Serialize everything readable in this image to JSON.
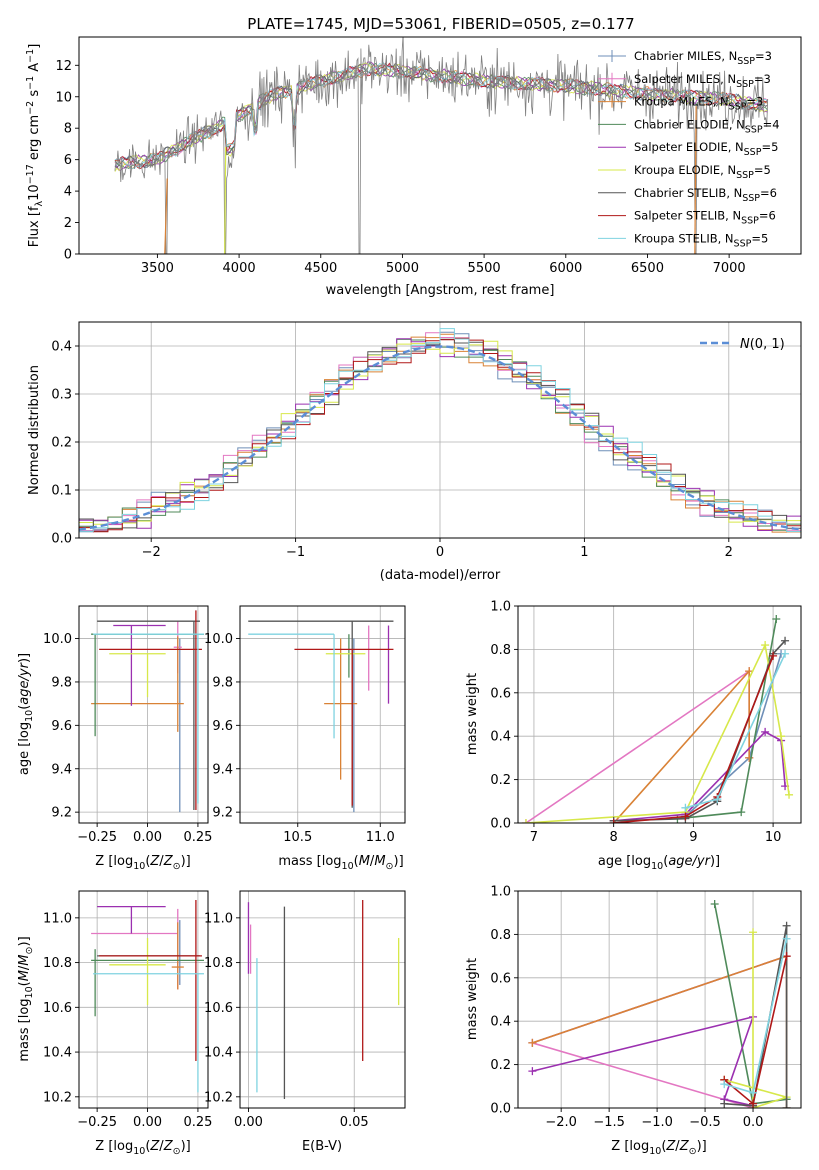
{
  "figure": {
    "title": "PLATE=1745, MJD=53061, FIBERID=0505, z=0.177"
  },
  "legend_entries": [
    {
      "name": "Chabrier MILES, N_SSP=3",
      "prefix": "Chabrier MILES, N",
      "sub": "SSP",
      "suffix": "=3",
      "color": "#6f8fb8"
    },
    {
      "name": "Salpeter MILES, N_SSP=3",
      "prefix": "Salpeter MILES, N",
      "sub": "SSP",
      "suffix": "=3",
      "color": "#e377c2"
    },
    {
      "name": "Kroupa MILES, N_SSP=3",
      "prefix": "Kroupa MILES, N",
      "sub": "SSP",
      "suffix": "=3",
      "color": "#d98236"
    },
    {
      "name": "Chabrier ELODIE, N_SSP=4",
      "prefix": "Chabrier ELODIE, N",
      "sub": "SSP",
      "suffix": "=4",
      "color": "#4f8a5a"
    },
    {
      "name": "Salpeter ELODIE, N_SSP=5",
      "prefix": "Salpeter ELODIE, N",
      "sub": "SSP",
      "suffix": "=5",
      "color": "#9b30b0"
    },
    {
      "name": "Kroupa ELODIE, N_SSP=5",
      "prefix": "Kroupa ELODIE, N",
      "sub": "SSP",
      "suffix": "=5",
      "color": "#d7e84a"
    },
    {
      "name": "Chabrier STELIB, N_SSP=6",
      "prefix": "Chabrier STELIB, N",
      "sub": "SSP",
      "suffix": "=6",
      "color": "#555555"
    },
    {
      "name": "Salpeter STELIB, N_SSP=6",
      "prefix": "Salpeter STELIB, N",
      "sub": "SSP",
      "suffix": "=6",
      "color": "#b01818"
    },
    {
      "name": "Kroupa STELIB, N_SSP=5",
      "prefix": "Kroupa STELIB, N",
      "sub": "SSP",
      "suffix": "=5",
      "color": "#7fd3e0"
    }
  ],
  "chart_data": [
    {
      "id": "spectrum",
      "type": "line",
      "xlabel": "wavelength [Angstrom, rest frame]",
      "ylabel": "Flux [f_λ 10^-17 erg cm^-2 s^-1 A^-1]",
      "xlim": [
        3020,
        7440
      ],
      "ylim": [
        0,
        13.8
      ],
      "xticks": [
        3500,
        4000,
        4500,
        5000,
        5500,
        6000,
        6500,
        7000
      ],
      "yticks": [
        0,
        2,
        4,
        6,
        8,
        10,
        12
      ],
      "data_color": "#808080",
      "x_range": [
        3240,
        7240
      ],
      "continuum": [
        [
          3240,
          5.7
        ],
        [
          3500,
          6.0
        ],
        [
          3700,
          7.2
        ],
        [
          3950,
          8.5
        ],
        [
          4200,
          10.1
        ],
        [
          4500,
          11.0
        ],
        [
          4800,
          11.8
        ],
        [
          5100,
          11.5
        ],
        [
          5500,
          11.0
        ],
        [
          6000,
          10.7
        ],
        [
          6500,
          10.2
        ],
        [
          7000,
          9.8
        ],
        [
          7240,
          9.4
        ]
      ],
      "dips": [
        [
          3555,
          0
        ],
        [
          3915,
          0
        ],
        [
          4735,
          0
        ],
        [
          6795,
          0
        ]
      ],
      "legend_position": "upper right"
    },
    {
      "id": "residuals",
      "type": "step",
      "xlabel": "(data-model)/error",
      "ylabel": "Normed distribution",
      "xlim": [
        -2.5,
        2.5
      ],
      "ylim": [
        0,
        0.45
      ],
      "xticks": [
        -2,
        -1,
        0,
        1,
        2
      ],
      "yticks": [
        0.0,
        0.1,
        0.2,
        0.3,
        0.4
      ],
      "bin_width": 0.1,
      "reference": {
        "label": "N(0,1)",
        "color": "#5b8ed6",
        "style": "dashed"
      },
      "grid": true,
      "legend_position": "upper right"
    },
    {
      "id": "age-vs-Z",
      "type": "errorbar",
      "xlabel": "Z [log10(Z/Z_sun)]",
      "ylabel": "age [log10(age/yr)]",
      "xlim": [
        -0.34,
        0.3
      ],
      "ylim": [
        9.15,
        10.15
      ],
      "xticks": [
        -0.25,
        0.0,
        0.25
      ],
      "yticks": [
        9.2,
        9.4,
        9.6,
        9.8,
        10.0
      ],
      "points": [
        {
          "model": "Chabrier MILES",
          "x": 0.16,
          "xerr": [
            0.0,
            0.0
          ],
          "y": 9.6,
          "yerr": [
            0.4,
            0.4
          ],
          "color": "#6f8fb8"
        },
        {
          "model": "Salpeter MILES",
          "x": 0.15,
          "xerr": [
            0.02,
            0.02
          ],
          "y": 9.96,
          "yerr": [
            0.12,
            0.12
          ],
          "color": "#e377c2"
        },
        {
          "model": "Kroupa MILES",
          "x": 0.15,
          "xerr": [
            0.43,
            0.03
          ],
          "y": 9.7,
          "yerr": [
            0.13,
            0.31
          ],
          "color": "#d98236"
        },
        {
          "model": "Chabrier ELODIE",
          "x": -0.26,
          "xerr": [
            0.02,
            0.54
          ],
          "y": 10.02,
          "yerr": [
            0.47,
            0.0
          ],
          "color": "#4f8a5a"
        },
        {
          "model": "Salpeter ELODIE",
          "x": -0.08,
          "xerr": [
            0.09,
            0.17
          ],
          "y": 10.06,
          "yerr": [
            0.37,
            0.0
          ],
          "color": "#9b30b0"
        },
        {
          "model": "Kroupa ELODIE",
          "x": 0.0,
          "xerr": [
            0.19,
            0.09
          ],
          "y": 9.93,
          "yerr": [
            0.2,
            0.0
          ],
          "color": "#d7e84a"
        },
        {
          "model": "Chabrier STELIB",
          "x": 0.23,
          "xerr": [
            0.48,
            0.03
          ],
          "y": 10.08,
          "yerr": [
            0.87,
            0.0
          ],
          "color": "#555555"
        },
        {
          "model": "Salpeter STELIB",
          "x": 0.24,
          "xerr": [
            0.48,
            0.03
          ],
          "y": 9.95,
          "yerr": [
            0.74,
            0.18
          ],
          "color": "#b01818"
        },
        {
          "model": "Kroupa STELIB",
          "x": 0.25,
          "xerr": [
            0.52,
            0.03
          ],
          "y": 10.02,
          "yerr": [
            0.78,
            0.0
          ],
          "color": "#7fd3e0"
        }
      ]
    },
    {
      "id": "age-vs-mass",
      "type": "errorbar",
      "xlabel": "mass [log10(M/M_sun)]",
      "ylabel": "",
      "xlim": [
        10.15,
        11.15
      ],
      "ylim": [
        9.15,
        10.15
      ],
      "xticks": [
        10.5,
        11.0
      ],
      "yticks": [
        9.2,
        9.4,
        9.6,
        9.8,
        10.0
      ],
      "points": [
        {
          "model": "Chabrier MILES",
          "x": 10.84,
          "xerr": [
            0.0,
            0.0
          ],
          "y": 9.6,
          "yerr": [
            0.4,
            0.4
          ],
          "color": "#6f8fb8"
        },
        {
          "model": "Salpeter MILES",
          "x": 10.93,
          "xerr": [
            0.0,
            0.0
          ],
          "y": 9.86,
          "yerr": [
            0.1,
            0.2
          ],
          "color": "#e377c2"
        },
        {
          "model": "Kroupa MILES",
          "x": 10.76,
          "xerr": [
            0.1,
            0.1
          ],
          "y": 9.7,
          "yerr": [
            0.35,
            0.3
          ],
          "color": "#d98236"
        },
        {
          "model": "Chabrier ELODIE",
          "x": 10.81,
          "xerr": [
            0.0,
            0.0
          ],
          "y": 10.02,
          "yerr": [
            0.2,
            0.0
          ],
          "color": "#4f8a5a"
        },
        {
          "model": "Salpeter ELODIE",
          "x": 11.05,
          "xerr": [
            0.0,
            0.0
          ],
          "y": 10.06,
          "yerr": [
            0.36,
            0.0
          ],
          "color": "#9b30b0"
        },
        {
          "model": "Kroupa ELODIE",
          "x": 10.79,
          "xerr": [
            0.12,
            0.12
          ],
          "y": 9.93,
          "yerr": [
            0.0,
            0.0
          ],
          "color": "#d7e84a"
        },
        {
          "model": "Chabrier STELIB",
          "x": 10.83,
          "xerr": [
            0.63,
            0.25
          ],
          "y": 10.08,
          "yerr": [
            0.86,
            0.0
          ],
          "color": "#555555"
        },
        {
          "model": "Salpeter STELIB",
          "x": 10.83,
          "xerr": [
            0.35,
            0.25
          ],
          "y": 9.95,
          "yerr": [
            0.72,
            0.0
          ],
          "color": "#b01818"
        },
        {
          "model": "Kroupa STELIB",
          "x": 10.72,
          "xerr": [
            0.52,
            0.0
          ],
          "y": 10.02,
          "yerr": [
            0.48,
            0.0
          ],
          "color": "#7fd3e0"
        }
      ]
    },
    {
      "id": "massweight-vs-age",
      "type": "line",
      "xlabel": "age [log10(age/yr)]",
      "ylabel": "mass weight",
      "xlim": [
        6.8,
        10.35
      ],
      "ylim": [
        0,
        1.0
      ],
      "xticks": [
        7,
        8,
        9,
        10
      ],
      "yticks": [
        0.0,
        0.2,
        0.4,
        0.6,
        0.8,
        1.0
      ],
      "grid": true,
      "series": [
        {
          "model": "Chabrier MILES",
          "color": "#6f8fb8",
          "x": [
            8.9,
            9.7,
            10.1
          ],
          "y": [
            0.03,
            0.3,
            0.78
          ]
        },
        {
          "model": "Salpeter MILES",
          "color": "#e377c2",
          "x": [
            6.9,
            9.7,
            9.7
          ],
          "y": [
            0.0,
            0.7,
            0.3
          ]
        },
        {
          "model": "Kroupa MILES",
          "color": "#d98236",
          "x": [
            8.0,
            9.7,
            9.7
          ],
          "y": [
            0.0,
            0.7,
            0.3
          ]
        },
        {
          "model": "Chabrier ELODIE",
          "color": "#4f8a5a",
          "x": [
            8.8,
            9.6,
            10.04
          ],
          "y": [
            0.02,
            0.05,
            0.94
          ]
        },
        {
          "model": "Salpeter ELODIE",
          "color": "#9b30b0",
          "x": [
            8.0,
            8.9,
            9.9,
            10.1,
            10.15
          ],
          "y": [
            0.01,
            0.04,
            0.42,
            0.38,
            0.17
          ]
        },
        {
          "model": "Kroupa ELODIE",
          "color": "#d7e84a",
          "x": [
            6.9,
            8.9,
            9.9,
            10.1,
            10.2
          ],
          "y": [
            0.0,
            0.05,
            0.82,
            0.4,
            0.13
          ]
        },
        {
          "model": "Chabrier STELIB",
          "color": "#555555",
          "x": [
            8.0,
            8.9,
            9.3,
            10.0,
            10.15
          ],
          "y": [
            0.01,
            0.02,
            0.1,
            0.78,
            0.84
          ]
        },
        {
          "model": "Salpeter STELIB",
          "color": "#b01818",
          "x": [
            8.0,
            8.9,
            9.3,
            10.0
          ],
          "y": [
            0.0,
            0.03,
            0.12,
            0.77
          ]
        },
        {
          "model": "Kroupa STELIB",
          "color": "#7fd3e0",
          "x": [
            8.9,
            9.3,
            10.15
          ],
          "y": [
            0.07,
            0.11,
            0.78
          ]
        }
      ]
    },
    {
      "id": "mass-vs-Z",
      "type": "errorbar",
      "xlabel": "Z [log10(Z/Z_sun)]",
      "ylabel": "mass [log10(M/M_sun)]",
      "xlim": [
        -0.34,
        0.3
      ],
      "ylim": [
        10.15,
        11.12
      ],
      "xticks": [
        -0.25,
        0.0,
        0.25
      ],
      "yticks": [
        10.2,
        10.4,
        10.6,
        10.8,
        11.0
      ],
      "points": [
        {
          "model": "Chabrier MILES",
          "x": 0.16,
          "xerr": [
            0.0,
            0.0
          ],
          "y": 10.82,
          "yerr": [
            0.12,
            0.17
          ],
          "color": "#6f8fb8"
        },
        {
          "model": "Salpeter MILES",
          "x": 0.15,
          "xerr": [
            0.43,
            0.0
          ],
          "y": 10.93,
          "yerr": [
            0.25,
            0.11
          ],
          "color": "#e377c2"
        },
        {
          "model": "Kroupa MILES",
          "x": 0.15,
          "xerr": [
            0.03,
            0.03
          ],
          "y": 10.78,
          "yerr": [
            0.1,
            0.2
          ],
          "color": "#d98236"
        },
        {
          "model": "Chabrier ELODIE",
          "x": -0.26,
          "xerr": [
            0.02,
            0.54
          ],
          "y": 10.81,
          "yerr": [
            0.25,
            0.05
          ],
          "color": "#4f8a5a"
        },
        {
          "model": "Salpeter ELODIE",
          "x": -0.08,
          "xerr": [
            0.17,
            0.17
          ],
          "y": 11.05,
          "yerr": [
            0.12,
            0.0
          ],
          "color": "#9b30b0"
        },
        {
          "model": "Kroupa ELODIE",
          "x": 0.0,
          "xerr": [
            0.19,
            0.09
          ],
          "y": 10.79,
          "yerr": [
            0.18,
            0.12
          ],
          "color": "#d7e84a"
        },
        {
          "model": "Chabrier STELIB",
          "x": 0.23,
          "xerr": [
            0.48,
            0.03
          ],
          "y": 10.83,
          "yerr": [
            0.0,
            0.0
          ],
          "color": "#555555"
        },
        {
          "model": "Salpeter STELIB",
          "x": 0.24,
          "xerr": [
            0.48,
            0.03
          ],
          "y": 10.83,
          "yerr": [
            0.47,
            0.25
          ],
          "color": "#b01818"
        },
        {
          "model": "Kroupa STELIB",
          "x": 0.25,
          "xerr": [
            0.52,
            0.03
          ],
          "y": 10.75,
          "yerr": [
            0.53,
            0.0
          ],
          "color": "#7fd3e0"
        }
      ]
    },
    {
      "id": "mass-vs-EBV",
      "type": "errorbar",
      "xlabel": "E(B-V)",
      "ylabel": "",
      "xlim": [
        -0.004,
        0.074
      ],
      "ylim": [
        10.15,
        11.12
      ],
      "xticks": [
        0.0,
        0.05
      ],
      "yticks": [
        10.2,
        10.4,
        10.6,
        10.8,
        11.0
      ],
      "points": [
        {
          "model": "Salpeter ELODIE",
          "x": 0.0,
          "xerr": [
            0.0,
            0.0
          ],
          "y": 10.87,
          "yerr": [
            0.12,
            0.2
          ],
          "color": "#9b30b0"
        },
        {
          "model": "Salpeter MILES",
          "x": 0.001,
          "xerr": [
            0.0,
            0.0
          ],
          "y": 10.87,
          "yerr": [
            0.12,
            0.1
          ],
          "color": "#e377c2"
        },
        {
          "model": "Kroupa STELIB",
          "x": 0.004,
          "xerr": [
            0.0,
            0.0
          ],
          "y": 10.62,
          "yerr": [
            0.4,
            0.2
          ],
          "color": "#7fd3e0"
        },
        {
          "model": "Chabrier STELIB",
          "x": 0.017,
          "xerr": [
            0.0,
            0.0
          ],
          "y": 10.71,
          "yerr": [
            0.52,
            0.34
          ],
          "color": "#555555"
        },
        {
          "model": "Salpeter STELIB",
          "x": 0.054,
          "xerr": [
            0.0,
            0.0
          ],
          "y": 10.72,
          "yerr": [
            0.36,
            0.36
          ],
          "color": "#b01818"
        },
        {
          "model": "Kroupa ELODIE",
          "x": 0.071,
          "xerr": [
            0.0,
            0.0
          ],
          "y": 10.76,
          "yerr": [
            0.15,
            0.15
          ],
          "color": "#d7e84a"
        }
      ]
    },
    {
      "id": "massweight-vs-Z",
      "type": "line",
      "xlabel": "Z [log10(Z/Z_sun)]",
      "ylabel": "mass weight",
      "xlim": [
        -2.45,
        0.5
      ],
      "ylim": [
        0,
        1.0
      ],
      "xticks": [
        -2.0,
        -1.5,
        -1.0,
        -0.5,
        0.0
      ],
      "yticks": [
        0.0,
        0.2,
        0.4,
        0.6,
        0.8,
        1.0
      ],
      "grid": true,
      "series": [
        {
          "model": "Chabrier MILES",
          "color": "#6f8fb8",
          "x": [
            -2.3,
            0.35,
            0.35
          ],
          "y": [
            0.3,
            0.7,
            0.0
          ]
        },
        {
          "model": "Salpeter MILES",
          "color": "#e377c2",
          "x": [
            0.35,
            -2.3,
            0.0
          ],
          "y": [
            0.7,
            0.3,
            0.0
          ]
        },
        {
          "model": "Kroupa MILES",
          "color": "#d98236",
          "x": [
            -2.3,
            0.35,
            0.35
          ],
          "y": [
            0.3,
            0.7,
            0.0
          ]
        },
        {
          "model": "Chabrier ELODIE",
          "color": "#4f8a5a",
          "x": [
            -0.4,
            0.0,
            0.35
          ],
          "y": [
            0.94,
            0.02,
            0.04
          ]
        },
        {
          "model": "Salpeter ELODIE",
          "color": "#9b30b0",
          "x": [
            -2.3,
            0.0,
            -0.3,
            0.0
          ],
          "y": [
            0.17,
            0.42,
            0.04,
            0.01
          ]
        },
        {
          "model": "Kroupa ELODIE",
          "color": "#d7e84a",
          "x": [
            0.0,
            0.0,
            0.35,
            -0.3
          ],
          "y": [
            0.81,
            0.0,
            0.05,
            0.13
          ]
        },
        {
          "model": "Chabrier STELIB",
          "color": "#555555",
          "x": [
            -0.3,
            0.0,
            0.35,
            0.35
          ],
          "y": [
            0.02,
            0.01,
            0.84,
            0.0
          ]
        },
        {
          "model": "Salpeter STELIB",
          "color": "#b01818",
          "x": [
            -0.3,
            0.0,
            0.35
          ],
          "y": [
            0.13,
            0.02,
            0.7
          ]
        },
        {
          "model": "Kroupa STELIB",
          "color": "#7fd3e0",
          "x": [
            -0.3,
            0.0,
            0.35
          ],
          "y": [
            0.11,
            0.07,
            0.78
          ]
        }
      ]
    }
  ]
}
